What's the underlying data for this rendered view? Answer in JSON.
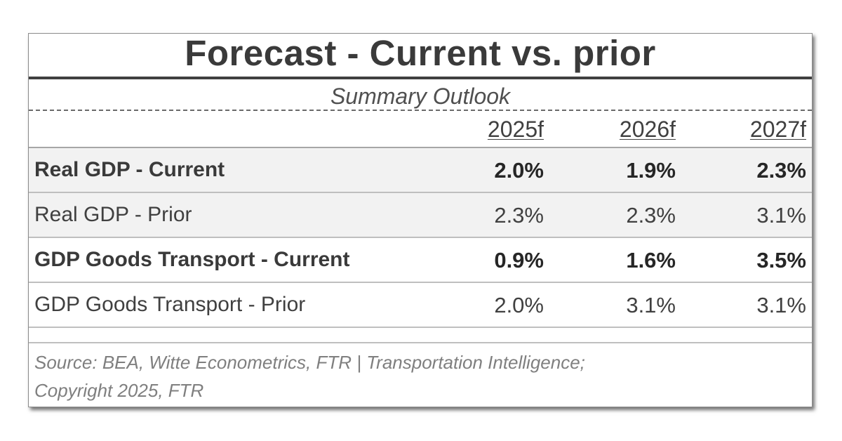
{
  "chart_data": {
    "type": "table",
    "title": "Forecast - Current vs. prior",
    "subtitle": "Summary Outlook",
    "columns": [
      "2025f",
      "2026f",
      "2027f"
    ],
    "rows": [
      {
        "label": "Real GDP - Current",
        "values": [
          "2.0%",
          "1.9%",
          "2.3%"
        ],
        "bold": true
      },
      {
        "label": "Real GDP - Prior",
        "values": [
          "2.3%",
          "2.3%",
          "3.1%"
        ],
        "bold": false
      },
      {
        "label": "GDP Goods Transport - Current",
        "values": [
          "0.9%",
          "1.6%",
          "3.5%"
        ],
        "bold": true
      },
      {
        "label": "GDP Goods Transport - Prior",
        "values": [
          "2.0%",
          "3.1%",
          "3.1%"
        ],
        "bold": false
      }
    ],
    "source_line1": "Source: BEA, Witte Econometrics, FTR | Transportation Intelligence;",
    "source_line2": "Copyright 2025, FTR"
  },
  "colors": {
    "text": "#404040",
    "row_shade": "#f2f2f2",
    "rule": "#bfbfbf",
    "source_text": "#7f7f7f"
  }
}
